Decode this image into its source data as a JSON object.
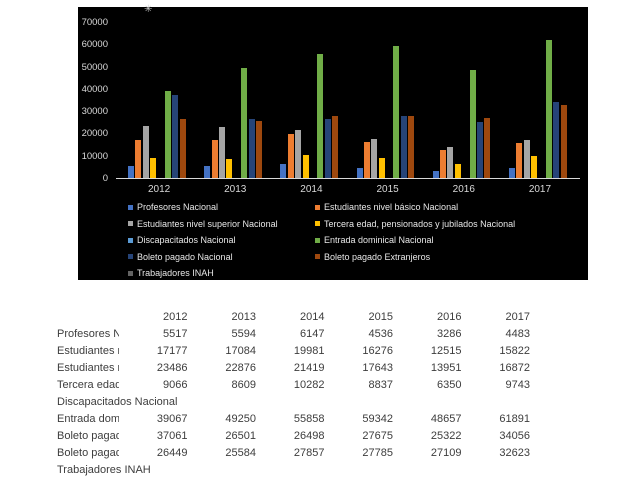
{
  "chart_data": {
    "type": "bar",
    "title": "",
    "xlabel": "",
    "ylabel": "",
    "categories": [
      "2012",
      "2013",
      "2014",
      "2015",
      "2016",
      "2017"
    ],
    "series": [
      {
        "name": "Profesores Nacional",
        "color": "#4472C4",
        "values": [
          5517,
          5594,
          6147,
          4536,
          3286,
          4483
        ]
      },
      {
        "name": "Estudiantes nivel básico Nacional",
        "color": "#ED7D31",
        "values": [
          17177,
          17084,
          19981,
          16276,
          12515,
          15822
        ]
      },
      {
        "name": "Estudiantes nivel superior Nacional",
        "color": "#A5A5A5",
        "values": [
          23486,
          22876,
          21419,
          17643,
          13951,
          16872
        ]
      },
      {
        "name": "Tercera edad, pensionados y jubilados Nacional",
        "color": "#FFC000",
        "values": [
          9066,
          8609,
          10282,
          8837,
          6350,
          9743
        ]
      },
      {
        "name": "Discapacitados Nacional",
        "color": "#5B9BD5",
        "values": []
      },
      {
        "name": "Entrada dominical Nacional",
        "color": "#70AD47",
        "values": [
          39067,
          49250,
          55858,
          59342,
          48657,
          61891
        ]
      },
      {
        "name": "Boleto pagado Nacional",
        "color": "#264478",
        "values": [
          37061,
          26501,
          26498,
          27675,
          25322,
          34056
        ]
      },
      {
        "name": "Boleto pagado Extranjeros",
        "color": "#9E480E",
        "values": [
          26449,
          25584,
          27857,
          27785,
          27109,
          32623
        ]
      },
      {
        "name": "Trabajadores INAH",
        "color": "#636363",
        "values": []
      }
    ],
    "ylim": [
      0,
      70000
    ],
    "y_ticks": [
      0,
      10000,
      20000,
      30000,
      40000,
      50000,
      60000,
      70000
    ],
    "grid": false,
    "legend_position": "bottom",
    "plot_background": "#000000",
    "axis_color": "#d9d9d9",
    "tick_label_color": "#d9d9d9",
    "legend_text_color": "#e8e8e8"
  },
  "table": {
    "note_header_source": "same years as chart categories",
    "text_color": "#3d3d3d"
  },
  "decorations": {
    "corner_mark": "✳"
  }
}
